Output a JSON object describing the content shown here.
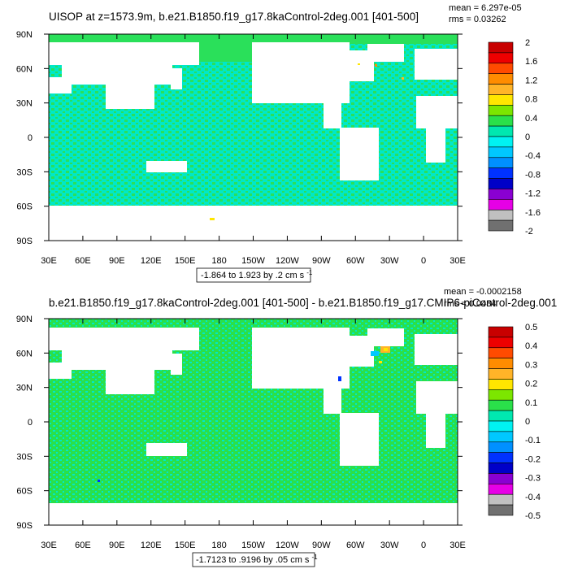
{
  "chart_data": [
    {
      "type": "heatmap",
      "title": "UISOP at z=1573.9m, b.e21.B1850.f19_g17.8kaControl-2deg.001 [401-500]",
      "mean_label": "mean = 6.297e-05",
      "rms_label": "rms = 0.03262",
      "x_ticks": [
        "30E",
        "60E",
        "90E",
        "120E",
        "150E",
        "180",
        "150W",
        "120W",
        "90W",
        "60W",
        "30W",
        "0",
        "30E"
      ],
      "y_ticks": [
        "90N",
        "60N",
        "30N",
        "0",
        "30S",
        "60S",
        "90S"
      ],
      "xlim": [
        30,
        390
      ],
      "ylim": [
        -90,
        90
      ],
      "colorbar_labels": [
        "2",
        "1.6",
        "1.2",
        "0.8",
        "0.4",
        "0",
        "-0.4",
        "-0.8",
        "-1.2",
        "-1.6",
        "-2"
      ],
      "colorbar_colors": [
        "#c80000",
        "#ee0000",
        "#ff4b00",
        "#ff8c00",
        "#ffb428",
        "#ffe600",
        "#7ce600",
        "#2ae04a",
        "#00e8b0",
        "#00f2f2",
        "#00c8ff",
        "#0090ff",
        "#0032ff",
        "#0000c8",
        "#8a00d2",
        "#e600e6",
        "#c0c0c0",
        "#707070"
      ],
      "range_label_main": "-1.864 to 1.923 by .2 cm s",
      "range_label_sup": "-1",
      "background_color": "#00e8c8",
      "texture_color": "#2ae05a"
    },
    {
      "type": "heatmap",
      "title": "b.e21.B1850.f19_g17.8kaControl-2deg.001 [401-500] - b.e21.B1850.f19_g17.CMIP6-piControl-2deg.001",
      "mean_label": "mean = -0.0002158",
      "rms_label": "rms = 0.0484",
      "x_ticks": [
        "30E",
        "60E",
        "90E",
        "120E",
        "150E",
        "180",
        "150W",
        "120W",
        "90W",
        "60W",
        "30W",
        "0",
        "30E"
      ],
      "y_ticks": [
        "90N",
        "60N",
        "30N",
        "0",
        "30S",
        "60S",
        "90S"
      ],
      "xlim": [
        30,
        390
      ],
      "ylim": [
        -90,
        90
      ],
      "colorbar_labels": [
        "0.5",
        "0.4",
        "0.3",
        "0.2",
        "0.1",
        "0",
        "-0.1",
        "-0.2",
        "-0.3",
        "-0.4",
        "-0.5"
      ],
      "colorbar_colors": [
        "#c80000",
        "#ee0000",
        "#ff4b00",
        "#ff8c00",
        "#ffb428",
        "#ffe600",
        "#7ce600",
        "#2ae04a",
        "#00e8b0",
        "#00f2f2",
        "#00c8ff",
        "#0090ff",
        "#0032ff",
        "#0000c8",
        "#8a00d2",
        "#e600e6",
        "#c0c0c0",
        "#707070"
      ],
      "range_label_main": "-1.7123 to .9196 by .05 cm s",
      "range_label_sup": "-1",
      "background_color": "#2ae04a",
      "texture_color": "#00e8c8"
    }
  ]
}
